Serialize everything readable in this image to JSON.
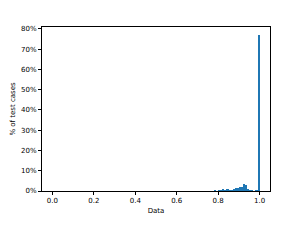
{
  "chart_data": {
    "type": "histogram",
    "xlabel": "Data",
    "ylabel": "% of test cases",
    "bins": [
      0,
      0.01,
      0.02,
      0.03,
      0.04,
      0.05,
      0.06,
      0.07,
      0.08,
      0.09,
      0.1,
      0.11,
      0.12,
      0.13,
      0.14,
      0.15,
      0.16,
      0.17,
      0.18,
      0.19,
      0.2,
      0.21,
      0.22,
      0.23,
      0.24,
      0.25,
      0.26,
      0.27,
      0.28,
      0.29,
      0.3,
      0.31,
      0.32,
      0.33,
      0.34,
      0.35,
      0.36,
      0.37,
      0.38,
      0.39,
      0.4,
      0.41,
      0.42,
      0.43,
      0.44,
      0.45,
      0.46,
      0.47,
      0.48,
      0.49,
      0.5,
      0.51,
      0.52,
      0.53,
      0.54,
      0.55,
      0.56,
      0.57,
      0.58,
      0.59,
      0.6,
      0.61,
      0.62,
      0.63,
      0.64,
      0.65,
      0.66,
      0.67,
      0.68,
      0.69,
      0.7,
      0.71,
      0.72,
      0.73,
      0.74,
      0.75,
      0.76,
      0.77,
      0.78,
      0.79,
      0.8,
      0.81,
      0.82,
      0.83,
      0.84,
      0.85,
      0.86,
      0.87,
      0.88,
      0.89,
      0.9,
      0.91,
      0.92,
      0.93,
      0.94,
      0.95,
      0.96,
      0.97,
      0.98,
      0.99,
      1.0
    ],
    "values": [
      0,
      0,
      0,
      0,
      0,
      0,
      0,
      0,
      0,
      0,
      0,
      0,
      0,
      0,
      0,
      0,
      0,
      0,
      0,
      0,
      0,
      0,
      0,
      0,
      0,
      0,
      0,
      0,
      0,
      0,
      0,
      0,
      0,
      0,
      0,
      0,
      0,
      0,
      0,
      0,
      0,
      0,
      0,
      0,
      0,
      0,
      0,
      0,
      0,
      0,
      0.1,
      0,
      0,
      0,
      0,
      0,
      0,
      0,
      0,
      0,
      0,
      0,
      0,
      0,
      0,
      0,
      0.1,
      0,
      0,
      0,
      0.1,
      0,
      0,
      0,
      0,
      0.2,
      0,
      0,
      0.3,
      0,
      0.6,
      0.4,
      0.8,
      0.3,
      0.9,
      0.5,
      0.7,
      1.2,
      1.5,
      1.4,
      1.8,
      2.2,
      3.4,
      2.9,
      0.8,
      0.4,
      0.3,
      0.2,
      0.3,
      77.0
    ],
    "color": "#1f77b4",
    "xlim": [
      -0.05,
      1.05
    ],
    "xticks": [
      {
        "value": 0,
        "label": "0.0"
      },
      0.2,
      0.4,
      0.6,
      0.8,
      {
        "value": 1,
        "label": "1.0"
      }
    ],
    "ylim": [
      0,
      80.9
    ],
    "yticks": [
      {
        "value": 0,
        "label": "0%"
      },
      {
        "value": 10,
        "label": "10%"
      },
      {
        "value": 20,
        "label": "20%"
      },
      {
        "value": 30,
        "label": "30%"
      },
      {
        "value": 40,
        "label": "40%"
      },
      {
        "value": 50,
        "label": "50%"
      },
      {
        "value": 60,
        "label": "60%"
      },
      {
        "value": 70,
        "label": "70%"
      },
      {
        "value": 80,
        "label": "80%"
      }
    ],
    "grid": false
  }
}
